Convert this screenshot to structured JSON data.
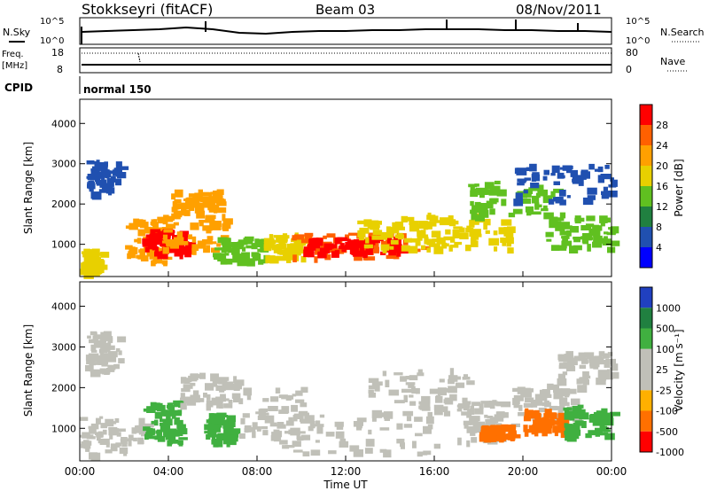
{
  "header": {
    "station": "Stokkseyri (fitACF)",
    "beam": "Beam 03",
    "date": "08/Nov/2011"
  },
  "strip_panels": {
    "left_labels": {
      "nsky": "N.Sky",
      "freq": "Freq.",
      "freq_unit": "[MHz]",
      "cpid": "CPID"
    },
    "right_labels": {
      "nsearch": "N.Search",
      "nave": "Nave"
    },
    "noise_ticks_left": [
      "10^5",
      "10^0"
    ],
    "noise_ticks_right": [
      "10^5",
      "10^0"
    ],
    "freq_ticks": [
      "18",
      "8"
    ],
    "nave_ticks": [
      "80",
      "0"
    ],
    "cpid_text": "normal 150"
  },
  "chart_data": [
    {
      "type": "heatmap",
      "panel": "power",
      "ylabel": "Slant Range [km]",
      "ylim": [
        200,
        4600
      ],
      "yticks": [
        1000,
        2000,
        3000,
        4000
      ],
      "xlim": [
        0,
        24
      ],
      "xticks": [
        "00:00",
        "04:00",
        "08:00",
        "12:00",
        "16:00",
        "20:00",
        "00:00"
      ],
      "colorbar": {
        "label": "Power [dB]",
        "ticks": [
          "28",
          "24",
          "20",
          "16",
          "12",
          "8",
          "4"
        ],
        "colors": [
          "#ff0000",
          "#ff6000",
          "#ffa000",
          "#e8d000",
          "#60c020",
          "#208040",
          "#2050b0",
          "#0000ff"
        ]
      },
      "regions": [
        {
          "x0": 0.0,
          "x1": 1.0,
          "y0": 300,
          "y1": 900,
          "level": 4
        },
        {
          "x0": 0.3,
          "x1": 1.8,
          "y0": 2300,
          "y1": 3100,
          "level": 1
        },
        {
          "x0": 2.0,
          "x1": 3.8,
          "y0": 600,
          "y1": 1700,
          "level": 5
        },
        {
          "x0": 2.8,
          "x1": 4.8,
          "y0": 800,
          "y1": 1400,
          "level": 7
        },
        {
          "x0": 3.7,
          "x1": 6.5,
          "y0": 900,
          "y1": 1900,
          "level": 5
        },
        {
          "x0": 4.0,
          "x1": 6.2,
          "y0": 1900,
          "y1": 2400,
          "level": 5
        },
        {
          "x0": 6.0,
          "x1": 8.3,
          "y0": 600,
          "y1": 1200,
          "level": 3
        },
        {
          "x0": 8.3,
          "x1": 10.0,
          "y0": 700,
          "y1": 1300,
          "level": 4
        },
        {
          "x0": 9.5,
          "x1": 15.5,
          "y0": 700,
          "y1": 1300,
          "level": 6
        },
        {
          "x0": 10.0,
          "x1": 14.5,
          "y0": 800,
          "y1": 1200,
          "level": 7
        },
        {
          "x0": 12.5,
          "x1": 16.3,
          "y0": 900,
          "y1": 1700,
          "level": 4
        },
        {
          "x0": 15.5,
          "x1": 19.5,
          "y0": 900,
          "y1": 1800,
          "level": 4
        },
        {
          "x0": 17.5,
          "x1": 21.5,
          "y0": 1700,
          "y1": 2600,
          "level": 3
        },
        {
          "x0": 19.5,
          "x1": 24.0,
          "y0": 2100,
          "y1": 3000,
          "level": 1
        },
        {
          "x0": 21.0,
          "x1": 24.0,
          "y0": 900,
          "y1": 1800,
          "level": 3
        }
      ]
    },
    {
      "type": "heatmap",
      "panel": "velocity",
      "ylabel": "Slant Range [km]",
      "ylim": [
        200,
        4600
      ],
      "yticks": [
        1000,
        2000,
        3000,
        4000
      ],
      "xlim": [
        0,
        24
      ],
      "xticks": [
        "00:00",
        "04:00",
        "08:00",
        "12:00",
        "16:00",
        "20:00",
        "00:00"
      ],
      "xlabel": "Time UT",
      "colorbar": {
        "label": "Velocity [m s⁻¹]",
        "ticks": [
          "1000",
          "500",
          "100",
          "25",
          "-25",
          "-100",
          "-500",
          "-1000"
        ],
        "colors": [
          "#2040c0",
          "#208040",
          "#40b040",
          "#c0c0b8",
          "#c0c0b8",
          "#ffb000",
          "#ff7000",
          "#ff0000"
        ]
      },
      "regions": [
        {
          "x0": 0.2,
          "x1": 1.8,
          "y0": 2400,
          "y1": 3400,
          "level": 3
        },
        {
          "x0": 0.0,
          "x1": 3.0,
          "y0": 400,
          "y1": 1300,
          "level": 3
        },
        {
          "x0": 2.8,
          "x1": 4.5,
          "y0": 700,
          "y1": 1700,
          "level": 2
        },
        {
          "x0": 5.6,
          "x1": 6.8,
          "y0": 700,
          "y1": 1400,
          "level": 2
        },
        {
          "x0": 4.5,
          "x1": 7.0,
          "y0": 1600,
          "y1": 2400,
          "level": 3
        },
        {
          "x0": 7.0,
          "x1": 10.0,
          "y0": 800,
          "y1": 2100,
          "level": 3
        },
        {
          "x0": 9.0,
          "x1": 16.0,
          "y0": 400,
          "y1": 1400,
          "level": 3
        },
        {
          "x0": 13.0,
          "x1": 17.5,
          "y0": 1400,
          "y1": 2500,
          "level": 3
        },
        {
          "x0": 17.0,
          "x1": 19.5,
          "y0": 700,
          "y1": 1700,
          "level": 3
        },
        {
          "x0": 18.0,
          "x1": 19.5,
          "y0": 800,
          "y1": 1100,
          "level": 6
        },
        {
          "x0": 19.5,
          "x1": 22.5,
          "y0": 1300,
          "y1": 2100,
          "level": 3
        },
        {
          "x0": 20.0,
          "x1": 21.8,
          "y0": 900,
          "y1": 1500,
          "level": 6
        },
        {
          "x0": 21.8,
          "x1": 24.0,
          "y0": 800,
          "y1": 1600,
          "level": 2
        },
        {
          "x0": 21.5,
          "x1": 24.0,
          "y0": 2200,
          "y1": 2900,
          "level": 3
        }
      ]
    }
  ]
}
